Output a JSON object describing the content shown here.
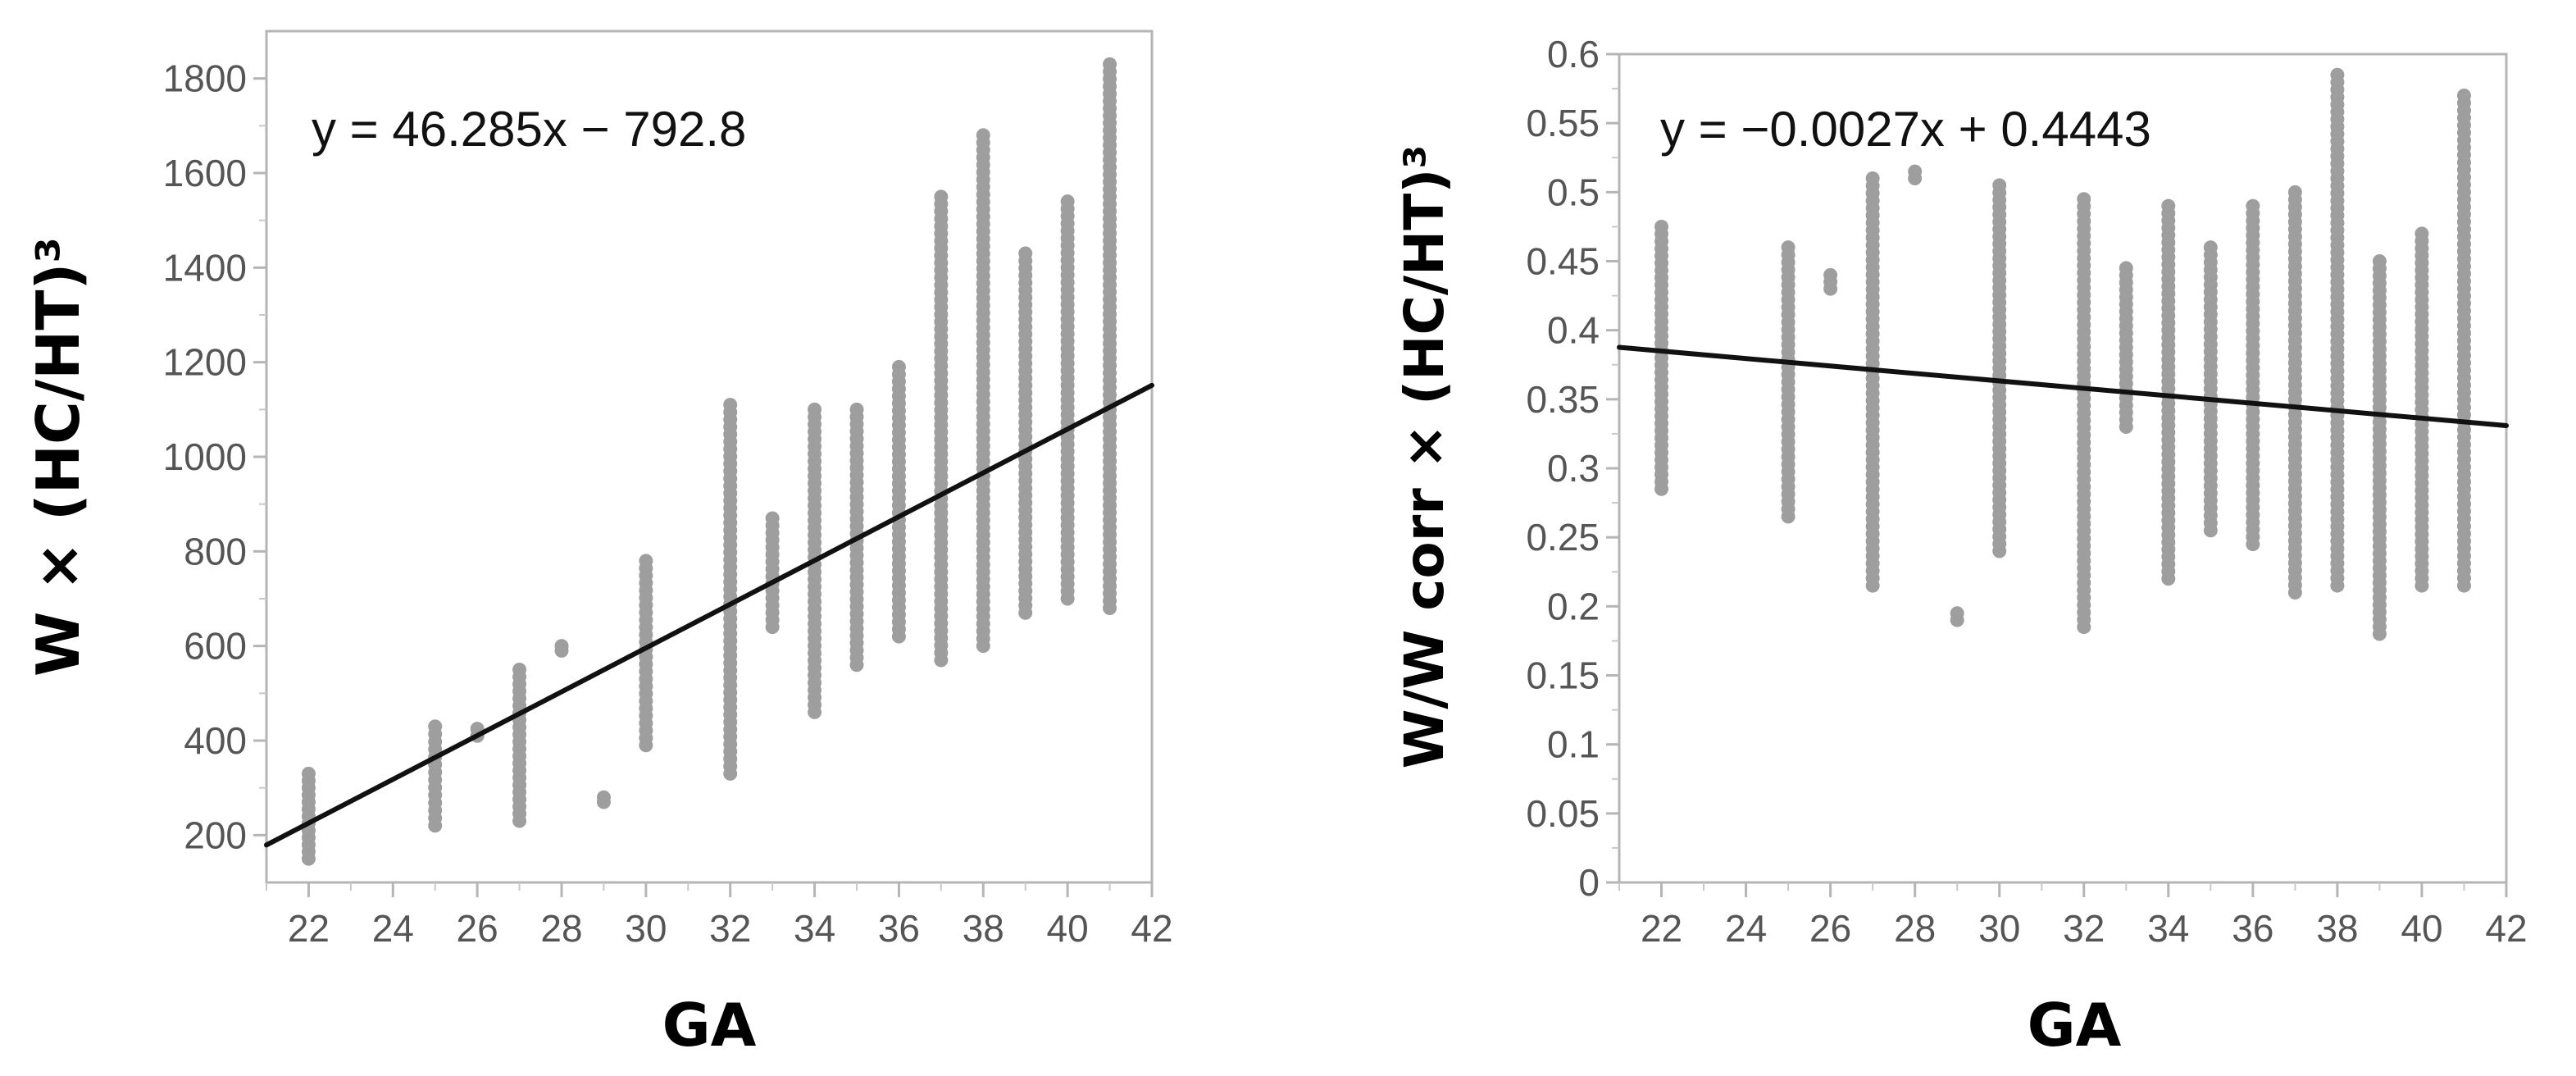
{
  "chart_data": [
    {
      "type": "scatter",
      "xlabel": "GA",
      "ylabel": "W × (HC/HT)³",
      "equation": "y = 46.285x − 792.8",
      "xlim": [
        21,
        42
      ],
      "ylim": [
        100,
        1900
      ],
      "xticks": [
        "22",
        "24",
        "26",
        "28",
        "30",
        "32",
        "34",
        "36",
        "38",
        "40",
        "42"
      ],
      "yticks": [
        "200",
        "400",
        "600",
        "800",
        "1000",
        "1200",
        "1400",
        "1600",
        "1800"
      ],
      "trendline": {
        "slope": 46.285,
        "intercept": -792.8
      },
      "marker_color": "#9e9e9e",
      "line_color": "#111111",
      "columns": [
        {
          "x": 22,
          "min": 150,
          "max": 330
        },
        {
          "x": 25,
          "min": 220,
          "max": 430
        },
        {
          "x": 26,
          "min": 410,
          "max": 425
        },
        {
          "x": 27,
          "min": 230,
          "max": 550
        },
        {
          "x": 28,
          "min": 590,
          "max": 600
        },
        {
          "x": 29,
          "min": 270,
          "max": 280
        },
        {
          "x": 30,
          "min": 390,
          "max": 780
        },
        {
          "x": 32,
          "min": 330,
          "max": 1110
        },
        {
          "x": 33,
          "min": 640,
          "max": 870
        },
        {
          "x": 34,
          "min": 460,
          "max": 1100
        },
        {
          "x": 35,
          "min": 560,
          "max": 1100
        },
        {
          "x": 36,
          "min": 620,
          "max": 1190
        },
        {
          "x": 37,
          "min": 570,
          "max": 1550
        },
        {
          "x": 38,
          "min": 600,
          "max": 1680
        },
        {
          "x": 39,
          "min": 670,
          "max": 1430
        },
        {
          "x": 40,
          "min": 700,
          "max": 1540
        },
        {
          "x": 41,
          "min": 680,
          "max": 1830
        }
      ]
    },
    {
      "type": "scatter",
      "xlabel": "GA",
      "ylabel": "W/W corr × (HC/HT)³",
      "equation": "y = −0.0027x + 0.4443",
      "xlim": [
        21,
        42
      ],
      "ylim": [
        0,
        0.6
      ],
      "xticks": [
        "22",
        "24",
        "26",
        "28",
        "30",
        "32",
        "34",
        "36",
        "38",
        "40",
        "42"
      ],
      "yticks": [
        "0",
        "0.05",
        "0.1",
        "0.15",
        "0.2",
        "0.25",
        "0.3",
        "0.35",
        "0.4",
        "0.45",
        "0.5",
        "0.55",
        "0.6"
      ],
      "trendline": {
        "slope": -0.0027,
        "intercept": 0.4443
      },
      "marker_color": "#9e9e9e",
      "line_color": "#111111",
      "columns": [
        {
          "x": 22,
          "min": 0.285,
          "max": 0.475
        },
        {
          "x": 25,
          "min": 0.265,
          "max": 0.46
        },
        {
          "x": 26,
          "min": 0.43,
          "max": 0.44
        },
        {
          "x": 27,
          "min": 0.215,
          "max": 0.51
        },
        {
          "x": 28,
          "min": 0.51,
          "max": 0.515
        },
        {
          "x": 29,
          "min": 0.19,
          "max": 0.195
        },
        {
          "x": 30,
          "min": 0.24,
          "max": 0.505
        },
        {
          "x": 32,
          "min": 0.185,
          "max": 0.495
        },
        {
          "x": 33,
          "min": 0.33,
          "max": 0.445
        },
        {
          "x": 34,
          "min": 0.22,
          "max": 0.49
        },
        {
          "x": 35,
          "min": 0.255,
          "max": 0.46
        },
        {
          "x": 36,
          "min": 0.245,
          "max": 0.49
        },
        {
          "x": 37,
          "min": 0.21,
          "max": 0.5
        },
        {
          "x": 38,
          "min": 0.215,
          "max": 0.585
        },
        {
          "x": 39,
          "min": 0.18,
          "max": 0.45
        },
        {
          "x": 40,
          "min": 0.215,
          "max": 0.47
        },
        {
          "x": 41,
          "min": 0.215,
          "max": 0.57
        }
      ]
    }
  ]
}
